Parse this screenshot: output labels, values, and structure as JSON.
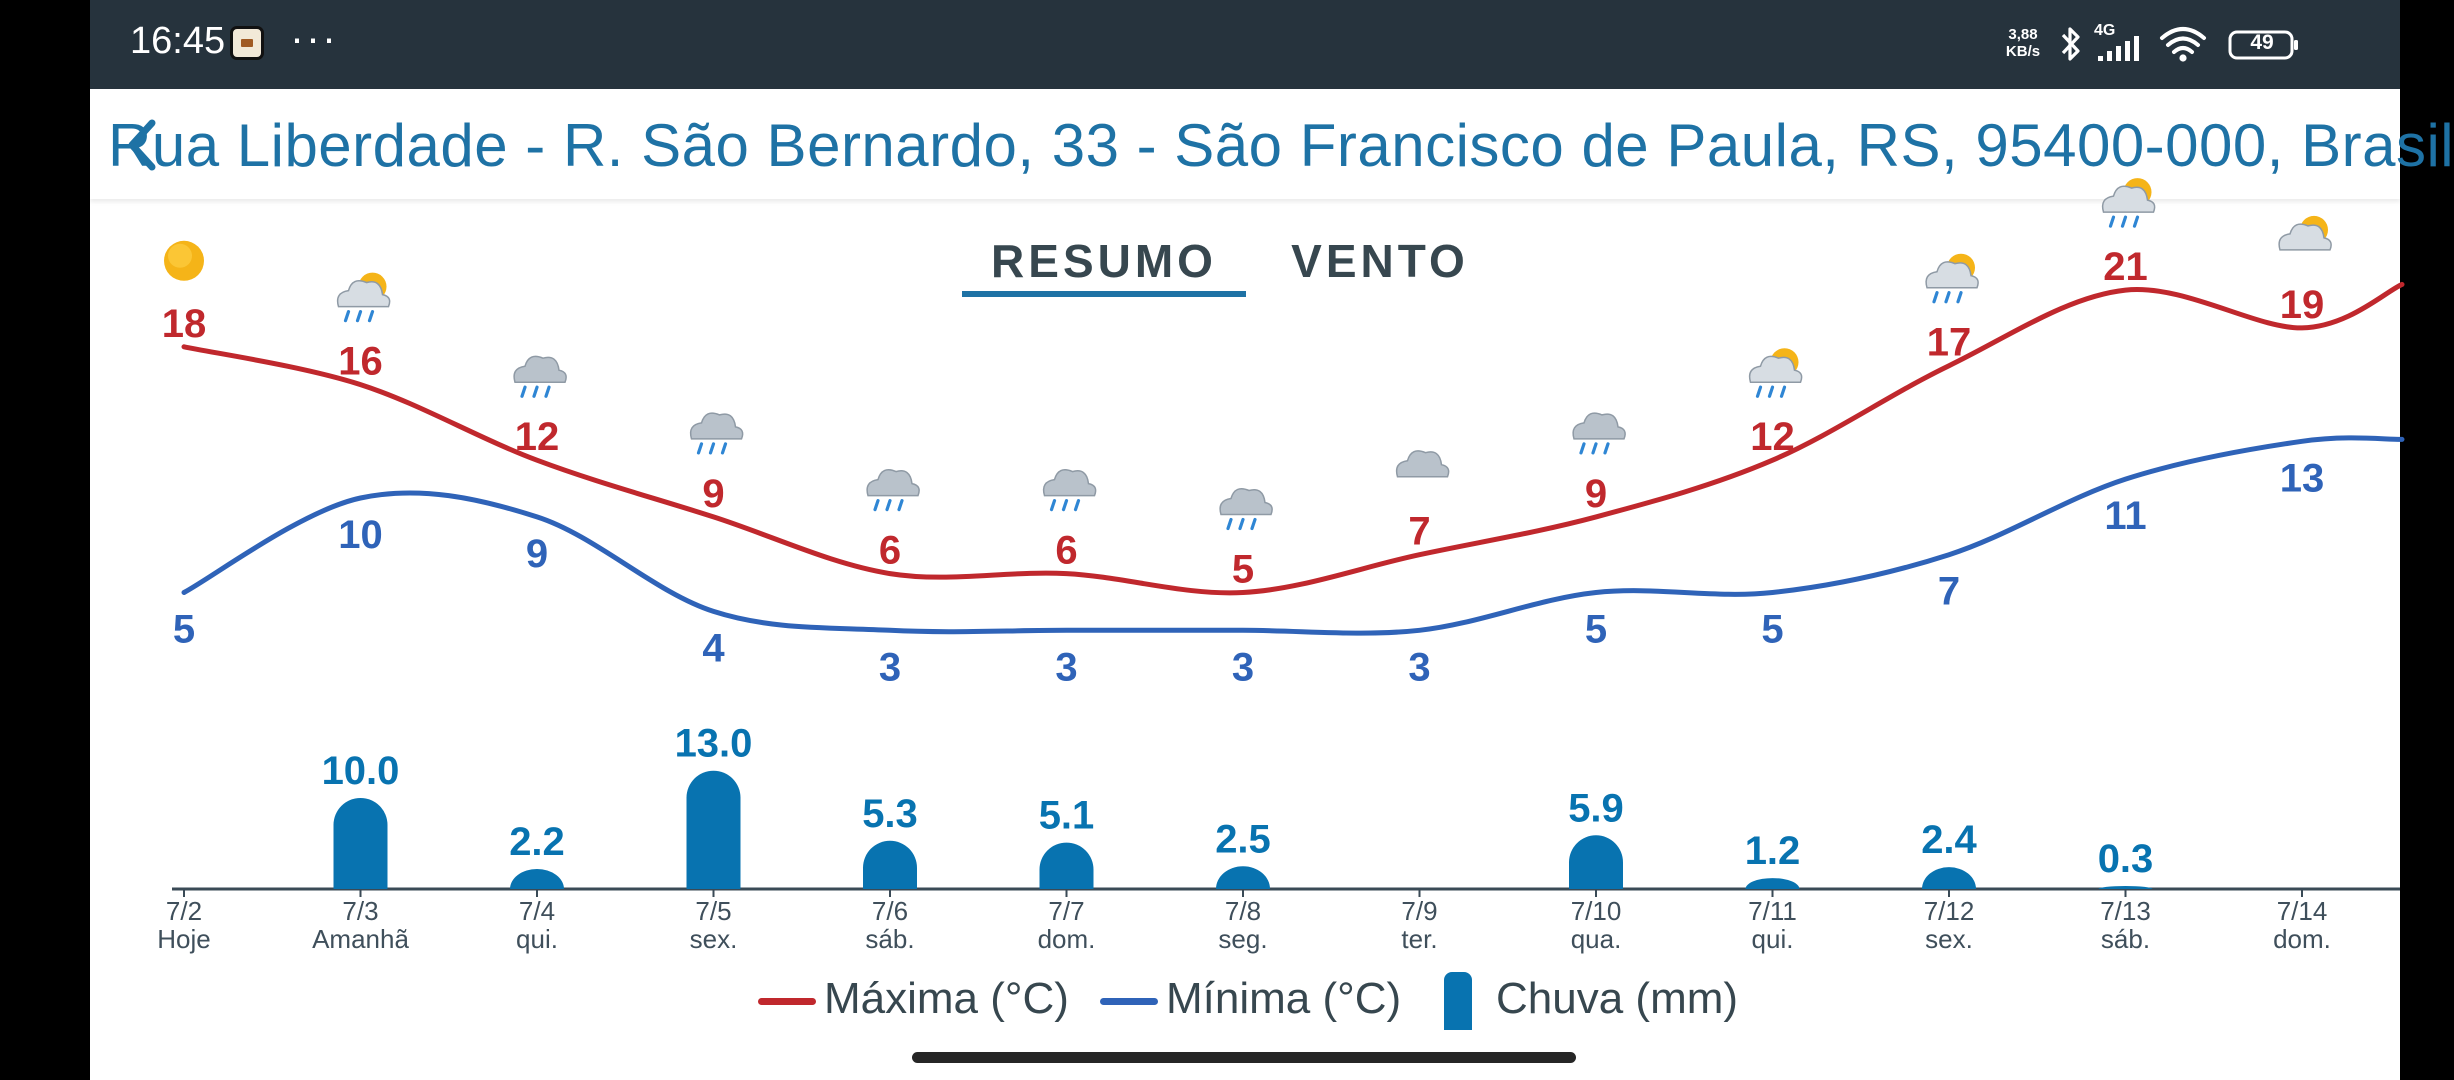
{
  "status_bar": {
    "time": "16:45",
    "overflow": "···",
    "net_speed_value": "3,88",
    "net_speed_unit": "KB/s",
    "network_type": "4G",
    "battery": "49",
    "icons": [
      "notification-app-icon",
      "bluetooth-icon",
      "signal-icon",
      "wifi-icon",
      "battery-icon"
    ]
  },
  "header": {
    "title": "Rua Liberdade - R. São Bernardo, 33 - São Francisco de Paula, RS, 95400-000, Brasil",
    "back_icon": "chevron-left-icon"
  },
  "tabs": [
    {
      "label": "RESUMO",
      "active": true
    },
    {
      "label": "VENTO",
      "active": false
    }
  ],
  "colors": {
    "accent": "#1e72a5",
    "max_line": "#c0282d",
    "min_line": "#2f63b8",
    "rain_bar": "#0873b0",
    "status_bar": "#26333d"
  },
  "chart_data": {
    "type": "line+bar",
    "x_dates": [
      "7/2",
      "7/3",
      "7/4",
      "7/5",
      "7/6",
      "7/7",
      "7/8",
      "7/9",
      "7/10",
      "7/11",
      "7/12",
      "7/13",
      "7/14"
    ],
    "x_days": [
      "Hoje",
      "Amanhã",
      "qui.",
      "sex.",
      "sáb.",
      "dom.",
      "seg.",
      "ter.",
      "qua.",
      "qui.",
      "sex.",
      "sáb.",
      "dom."
    ],
    "weather_icons": [
      "sun-icon",
      "sun-cloud-rain-icon",
      "cloud-rain-icon",
      "cloud-rain-icon",
      "cloud-rain-icon",
      "cloud-rain-icon",
      "cloud-rain-icon",
      "cloud-icon",
      "cloud-rain-icon",
      "sun-cloud-rain-icon",
      "sun-cloud-rain-icon",
      "sun-cloud-rain-icon",
      "sun-cloud-icon"
    ],
    "series": [
      {
        "name": "Máxima (°C)",
        "type": "line",
        "values": [
          18,
          16,
          12,
          9,
          6,
          6,
          5,
          7,
          9,
          12,
          17,
          21,
          19
        ]
      },
      {
        "name": "Mínima (°C)",
        "type": "line",
        "values": [
          5,
          10,
          9,
          4,
          3,
          3,
          3,
          3,
          5,
          5,
          7,
          11,
          13
        ]
      },
      {
        "name": "Chuva (mm)",
        "type": "bar",
        "values": [
          null,
          10.0,
          2.2,
          13.0,
          5.3,
          5.1,
          2.5,
          null,
          5.9,
          1.2,
          2.4,
          0.3,
          null
        ],
        "labels": [
          "",
          "10.0",
          "2.2",
          "13.0",
          "5.3",
          "5.1",
          "2.5",
          "",
          "5.9",
          "1.2",
          "2.4",
          "0.3",
          ""
        ]
      }
    ],
    "legend_position": "bottom"
  },
  "legend": {
    "max_label": "Máxima (°C)",
    "min_label": "Mínima (°C)",
    "rain_label": "Chuva (mm)"
  }
}
